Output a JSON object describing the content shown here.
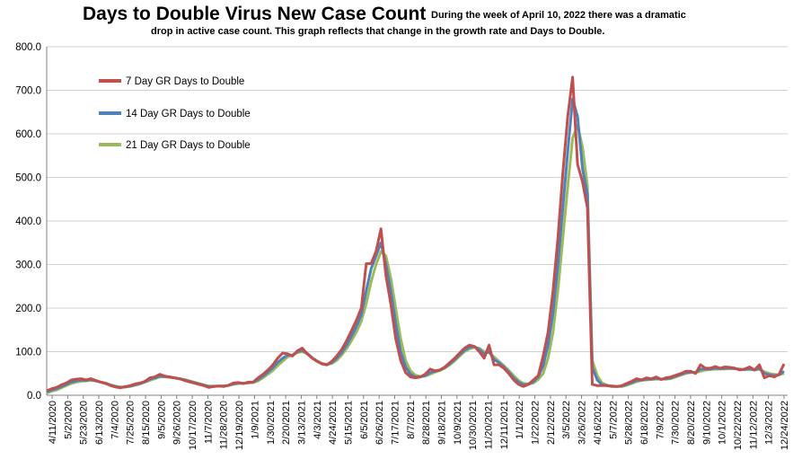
{
  "chart_data": {
    "type": "line",
    "title": "Days to Double Virus New Case Count",
    "subtitle_lines": [
      "During the week of April 10, 2022 there was a dramatic",
      "drop in active case count.  This graph reflects that change in the growth rate and Days to Double."
    ],
    "xlabel": "",
    "ylabel": "",
    "ylim": [
      0,
      800
    ],
    "yticks": [
      "0.0",
      "100.0",
      "200.0",
      "300.0",
      "400.0",
      "500.0",
      "600.0",
      "700.0",
      "800.0"
    ],
    "ytick_values": [
      0,
      100,
      200,
      300,
      400,
      500,
      600,
      700,
      800
    ],
    "grid": true,
    "legend_position": "top-left",
    "x_tick_labels": [
      "4/11/2020",
      "5/2/2020",
      "5/23/2020",
      "6/13/2020",
      "7/4/2020",
      "7/25/2020",
      "8/15/2020",
      "9/5/2020",
      "9/26/2020",
      "10/17/2020",
      "11/7/2020",
      "11/28/2020",
      "12/19/2020",
      "1/9/2021",
      "1/30/2021",
      "2/20/2021",
      "3/13/2021",
      "4/3/2021",
      "4/24/2021",
      "5/15/2021",
      "6/5/2021",
      "6/26/2021",
      "7/17/2021",
      "8/7/2021",
      "8/28/2021",
      "9/18/2021",
      "10/9/2021",
      "10/30/2021",
      "11/20/2021",
      "12/11/2021",
      "1/1/2022",
      "1/22/2022",
      "2/12/2022",
      "3/5/2022",
      "3/26/2022",
      "4/16/2022",
      "5/7/2022",
      "5/28/2022",
      "6/18/2022",
      "7/9/2022",
      "7/30/2022",
      "8/20/2022",
      "9/10/2022",
      "10/1/2022",
      "10/22/2022",
      "11/12/2022",
      "12/3/2022",
      "12/24/2022"
    ],
    "series": [
      {
        "name": "7 Day GR Days to Double",
        "color": "#c0504d",
        "values": [
          10,
          15,
          18,
          24,
          28,
          35,
          37,
          38,
          35,
          38,
          34,
          30,
          27,
          22,
          19,
          17,
          20,
          22,
          26,
          28,
          32,
          40,
          42,
          48,
          44,
          42,
          40,
          38,
          34,
          31,
          28,
          25,
          22,
          18,
          20,
          21,
          20,
          23,
          28,
          29,
          27,
          30,
          30,
          40,
          48,
          58,
          70,
          85,
          97,
          95,
          90,
          102,
          108,
          95,
          85,
          78,
          72,
          70,
          78,
          90,
          105,
          125,
          148,
          172,
          200,
          302,
          302,
          330,
          382,
          275,
          210,
          130,
          80,
          52,
          42,
          40,
          42,
          48,
          60,
          56,
          58,
          65,
          75,
          85,
          97,
          108,
          115,
          112,
          100,
          85,
          115,
          70,
          70,
          62,
          50,
          35,
          25,
          20,
          25,
          35,
          45,
          90,
          145,
          240,
          360,
          510,
          640,
          730,
          530,
          490,
          430,
          25,
          22,
          22,
          22,
          20,
          20,
          22,
          27,
          32,
          38,
          35,
          40,
          38,
          42,
          36,
          40,
          42,
          46,
          50,
          55,
          55,
          50,
          70,
          62,
          62,
          66,
          62,
          65,
          64,
          62,
          58,
          60,
          65,
          58,
          70,
          40,
          45,
          42,
          48,
          72
        ],
        "points": ""
      },
      {
        "name": "14 Day GR Days to Double",
        "color": "#4f81bd",
        "values": [
          8,
          12,
          15,
          20,
          25,
          30,
          33,
          35,
          34,
          36,
          33,
          30,
          27,
          23,
          20,
          18,
          19,
          21,
          24,
          27,
          31,
          37,
          40,
          44,
          43,
          42,
          40,
          38,
          35,
          32,
          29,
          26,
          23,
          20,
          20,
          21,
          21,
          23,
          26,
          28,
          27,
          29,
          30,
          36,
          44,
          53,
          63,
          75,
          85,
          92,
          92,
          100,
          103,
          96,
          86,
          78,
          72,
          70,
          75,
          85,
          98,
          115,
          135,
          158,
          185,
          240,
          290,
          320,
          350,
          300,
          240,
          165,
          100,
          65,
          48,
          42,
          42,
          45,
          52,
          55,
          58,
          64,
          72,
          82,
          93,
          103,
          110,
          112,
          105,
          95,
          100,
          82,
          75,
          65,
          53,
          40,
          30,
          24,
          25,
          31,
          42,
          68,
          115,
          190,
          300,
          430,
          560,
          680,
          640,
          520,
          460,
          65,
          35,
          24,
          22,
          21,
          20,
          21,
          25,
          29,
          34,
          35,
          37,
          37,
          39,
          37,
          38,
          40,
          44,
          48,
          52,
          53,
          52,
          60,
          60,
          60,
          62,
          61,
          62,
          62,
          61,
          59,
          59,
          61,
          58,
          62,
          50,
          47,
          45,
          47,
          55
        ],
        "points": ""
      },
      {
        "name": "21 Day GR Days to Double",
        "color": "#9bbb59",
        "values": [
          5,
          9,
          12,
          17,
          22,
          27,
          30,
          32,
          33,
          34,
          33,
          30,
          28,
          24,
          21,
          19,
          19,
          20,
          23,
          26,
          30,
          34,
          38,
          42,
          42,
          41,
          40,
          38,
          36,
          33,
          30,
          27,
          24,
          21,
          21,
          21,
          21,
          22,
          25,
          27,
          27,
          28,
          29,
          33,
          40,
          48,
          57,
          68,
          78,
          88,
          92,
          98,
          100,
          95,
          86,
          79,
          73,
          71,
          73,
          80,
          92,
          107,
          125,
          145,
          170,
          210,
          260,
          300,
          330,
          320,
          270,
          200,
          130,
          80,
          56,
          46,
          43,
          44,
          48,
          53,
          57,
          62,
          70,
          79,
          90,
          100,
          106,
          110,
          108,
          100,
          98,
          88,
          78,
          68,
          57,
          45,
          34,
          27,
          26,
          28,
          36,
          50,
          85,
          145,
          240,
          360,
          480,
          590,
          620,
          570,
          480,
          80,
          45,
          28,
          23,
          21,
          20,
          20,
          23,
          27,
          31,
          34,
          35,
          36,
          37,
          37,
          37,
          38,
          42,
          46,
          50,
          52,
          52,
          55,
          58,
          59,
          60,
          60,
          60,
          61,
          61,
          60,
          59,
          59,
          58,
          59,
          54,
          50,
          48,
          47,
          50
        ],
        "points": ""
      }
    ]
  }
}
